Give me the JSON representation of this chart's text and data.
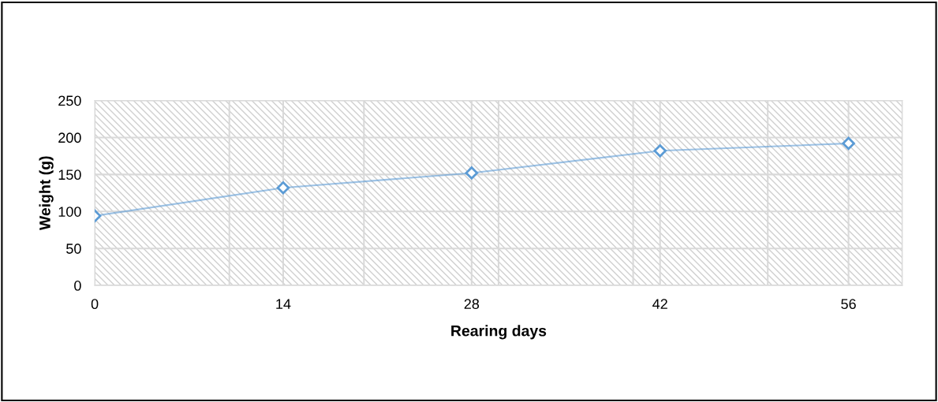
{
  "chart_data": {
    "type": "line",
    "xlabel": "Rearing days",
    "ylabel": "Weight (g)",
    "x": [
      0,
      14,
      28,
      42,
      56
    ],
    "series": [
      {
        "color": "#5b9bd5",
        "values": [
          94,
          132,
          152,
          182,
          192
        ]
      }
    ],
    "marker": "diamond",
    "line_style": "solid",
    "xlim": [
      0,
      60
    ],
    "xticks": [
      {
        "value": 0,
        "label": "0"
      },
      {
        "value": 10,
        "label": null
      },
      {
        "value": 14,
        "label": "14"
      },
      {
        "value": 20,
        "label": null
      },
      {
        "value": 28,
        "label": "28"
      },
      {
        "value": 30,
        "label": null
      },
      {
        "value": 40,
        "label": null
      },
      {
        "value": 42,
        "label": "42"
      },
      {
        "value": 50,
        "label": null
      },
      {
        "value": 56,
        "label": "56"
      },
      {
        "value": 60,
        "label": null
      }
    ],
    "ylim": [
      0,
      250
    ],
    "yticks": [
      0,
      50,
      100,
      150,
      200,
      250
    ],
    "grid": true
  }
}
